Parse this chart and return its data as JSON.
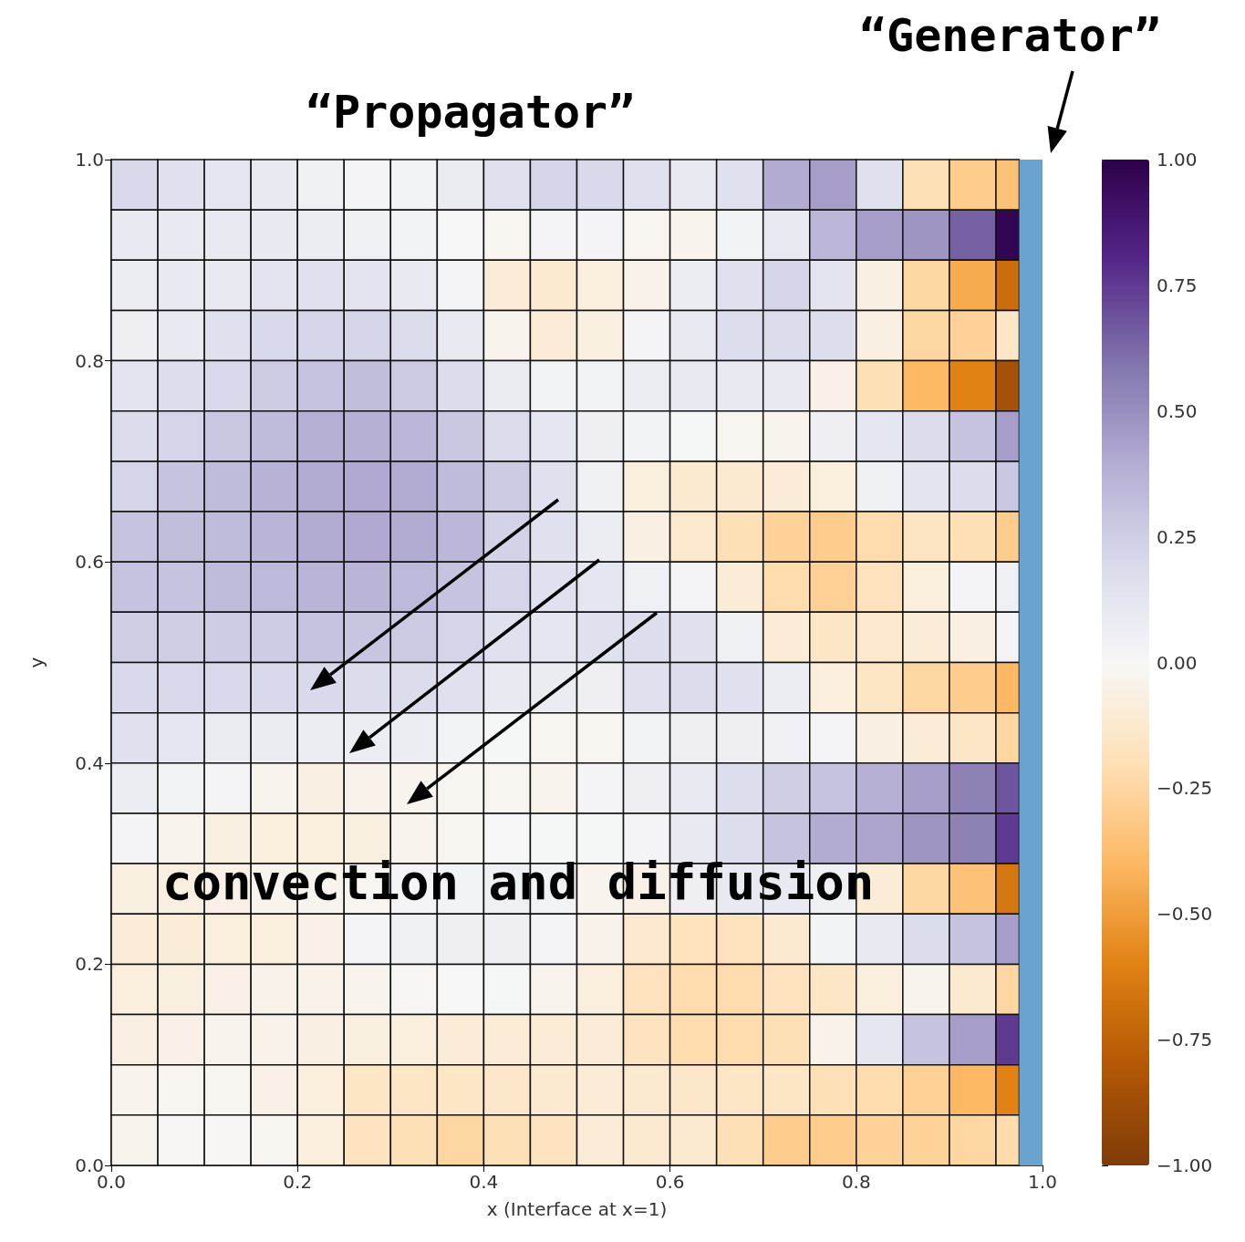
{
  "chart_data": {
    "type": "heatmap",
    "annotations": [
      "“Propagator”",
      "convection and diffusion"
    ],
    "xlabel": "x (Interface at x=1)",
    "ylabel": "y",
    "x": [
      0.025,
      0.075,
      0.125,
      0.175,
      0.225,
      0.275,
      0.325,
      0.375,
      0.425,
      0.475,
      0.525,
      0.575,
      0.625,
      0.675,
      0.725,
      0.775,
      0.825,
      0.875,
      0.925,
      0.9625
    ],
    "xlim": [
      0,
      1
    ],
    "ylim": [
      0,
      1
    ],
    "xticks": [
      {
        "value": 0,
        "label": "0.0"
      },
      {
        "value": 0.2,
        "label": "0.2"
      },
      {
        "value": 0.4,
        "label": "0.4"
      },
      {
        "value": 0.6,
        "label": "0.6"
      },
      {
        "value": 0.8,
        "label": "0.8"
      },
      {
        "value": 1,
        "label": "1.0"
      }
    ],
    "yticks": [
      {
        "value": 0,
        "label": "0.0"
      },
      {
        "value": 0.2,
        "label": "0.2"
      },
      {
        "value": 0.4,
        "label": "0.4"
      },
      {
        "value": 0.6,
        "label": "0.6"
      },
      {
        "value": 0.8,
        "label": "0.8"
      },
      {
        "value": 1,
        "label": "1.0"
      }
    ],
    "clim": [
      -1,
      1
    ],
    "cticks": [
      {
        "value": 1,
        "label": "1.00"
      },
      {
        "value": 0.75,
        "label": "0.75"
      },
      {
        "value": 0.5,
        "label": "0.50"
      },
      {
        "value": 0.25,
        "label": "0.25"
      },
      {
        "value": 0,
        "label": "0.00"
      },
      {
        "value": -0.25,
        "label": "−0.25"
      },
      {
        "value": -0.5,
        "label": "−0.50"
      },
      {
        "value": -0.75,
        "label": "−0.75"
      },
      {
        "value": -1,
        "label": "−1.00"
      }
    ],
    "bands": [
      {
        "axis": "x",
        "from": 0.975,
        "to": 1,
        "label": "“Generator”",
        "color": "#6aa3d0"
      }
    ],
    "grid": false,
    "cells": [
      [
        0.2,
        0.15,
        0.12,
        0.1,
        0.05,
        0.02,
        0.03,
        0.08,
        0.15,
        0.22,
        0.2,
        0.15,
        0.1,
        0.15,
        0.4,
        0.45,
        0.15,
        -0.2,
        -0.3,
        -0.35
      ],
      [
        0.1,
        0.1,
        0.1,
        0.1,
        0.07,
        0.05,
        0.03,
        0,
        -0.02,
        0.02,
        0.02,
        -0.02,
        -0.03,
        0.03,
        0.1,
        0.35,
        0.45,
        0.48,
        0.65,
        0.97
      ],
      [
        0.07,
        0.1,
        0.1,
        0.13,
        0.15,
        0.13,
        0.1,
        0.02,
        -0.1,
        -0.12,
        -0.08,
        -0.04,
        0.07,
        0.15,
        0.22,
        0.13,
        -0.06,
        -0.25,
        -0.45,
        -0.7
      ],
      [
        0.06,
        0.1,
        0.15,
        0.2,
        0.22,
        0.22,
        0.18,
        0.1,
        -0.03,
        -0.1,
        -0.07,
        0.02,
        0.1,
        0.17,
        0.18,
        0.17,
        -0.06,
        -0.25,
        -0.27,
        -0.15
      ],
      [
        0.13,
        0.17,
        0.2,
        0.26,
        0.3,
        0.32,
        0.27,
        0.18,
        0.08,
        0.03,
        0.03,
        0.07,
        0.1,
        0.1,
        0.1,
        -0.05,
        -0.2,
        -0.4,
        -0.6,
        -0.85
      ],
      [
        0.18,
        0.22,
        0.28,
        0.33,
        0.38,
        0.38,
        0.35,
        0.28,
        0.18,
        0.12,
        0.06,
        0.03,
        0.01,
        -0.02,
        -0.03,
        0.06,
        0.12,
        0.18,
        0.3,
        0.45
      ],
      [
        0.22,
        0.3,
        0.33,
        0.37,
        0.4,
        0.41,
        0.4,
        0.33,
        0.27,
        0.15,
        0.05,
        -0.08,
        -0.12,
        -0.12,
        -0.1,
        -0.08,
        0.05,
        0.13,
        0.18,
        0.28
      ],
      [
        0.3,
        0.32,
        0.33,
        0.36,
        0.4,
        0.41,
        0.4,
        0.35,
        0.23,
        0.15,
        0.07,
        -0.06,
        -0.13,
        -0.2,
        -0.27,
        -0.3,
        -0.22,
        -0.16,
        -0.2,
        -0.3
      ],
      [
        0.3,
        0.3,
        0.33,
        0.34,
        0.36,
        0.36,
        0.34,
        0.3,
        0.22,
        0.15,
        0.12,
        0.05,
        0.02,
        -0.1,
        -0.22,
        -0.28,
        -0.18,
        -0.08,
        0.02,
        0.05
      ],
      [
        0.25,
        0.25,
        0.26,
        0.26,
        0.3,
        0.29,
        0.27,
        0.22,
        0.15,
        0.12,
        0.15,
        0.17,
        0.15,
        0.05,
        -0.1,
        -0.15,
        -0.13,
        -0.1,
        -0.06,
        0.02
      ],
      [
        0.2,
        0.2,
        0.2,
        0.2,
        0.2,
        0.18,
        0.18,
        0.15,
        0.1,
        0.08,
        0.06,
        0.15,
        0.18,
        0.15,
        0.07,
        -0.08,
        -0.15,
        -0.25,
        -0.3,
        -0.4
      ],
      [
        0.15,
        0.12,
        0.08,
        0.08,
        0.07,
        0.07,
        0.07,
        0.03,
        0.01,
        -0.02,
        -0.02,
        0.03,
        0.06,
        0.06,
        0.04,
        0.02,
        -0.06,
        -0.1,
        -0.15,
        -0.25
      ],
      [
        0.07,
        0.03,
        0.02,
        -0.03,
        -0.06,
        -0.04,
        -0.03,
        -0.02,
        -0.02,
        -0.03,
        0.02,
        0.06,
        0.1,
        0.17,
        0.25,
        0.3,
        0.38,
        0.45,
        0.55,
        0.68
      ],
      [
        0.02,
        -0.03,
        -0.07,
        -0.08,
        -0.08,
        -0.07,
        -0.03,
        -0.02,
        0,
        0.01,
        0.01,
        0.02,
        0.1,
        0.17,
        0.3,
        0.4,
        0.42,
        0.48,
        0.55,
        0.75
      ],
      [
        -0.07,
        -0.07,
        -0.05,
        -0.03,
        -0.03,
        -0.02,
        0.02,
        0.03,
        0.05,
        0.03,
        -0.03,
        -0.05,
        0.06,
        0.1,
        0.1,
        0.05,
        -0.1,
        -0.25,
        -0.35,
        -0.65
      ],
      [
        -0.1,
        -0.1,
        -0.08,
        -0.08,
        -0.05,
        0.02,
        0.05,
        0.06,
        0.06,
        0.02,
        -0.04,
        -0.13,
        -0.18,
        -0.18,
        -0.12,
        0.03,
        0.1,
        0.18,
        0.3,
        0.45
      ],
      [
        -0.08,
        -0.07,
        -0.05,
        -0.04,
        -0.04,
        -0.03,
        -0.01,
        0,
        0.01,
        -0.03,
        -0.08,
        -0.18,
        -0.22,
        -0.22,
        -0.18,
        -0.15,
        -0.08,
        -0.03,
        -0.12,
        -0.25
      ],
      [
        -0.06,
        -0.05,
        -0.03,
        -0.04,
        -0.06,
        -0.07,
        -0.08,
        -0.1,
        -0.1,
        -0.1,
        -0.1,
        -0.17,
        -0.22,
        -0.22,
        -0.2,
        -0.04,
        0.12,
        0.3,
        0.45,
        0.75
      ],
      [
        -0.03,
        -0.02,
        -0.02,
        -0.05,
        -0.08,
        -0.15,
        -0.15,
        -0.15,
        -0.14,
        -0.12,
        -0.1,
        -0.12,
        -0.14,
        -0.15,
        -0.15,
        -0.2,
        -0.22,
        -0.28,
        -0.4,
        -0.6
      ],
      [
        -0.03,
        -0.01,
        -0.01,
        -0.02,
        -0.08,
        -0.17,
        -0.2,
        -0.25,
        -0.2,
        -0.17,
        -0.1,
        -0.12,
        -0.12,
        -0.2,
        -0.3,
        -0.3,
        -0.27,
        -0.27,
        -0.25,
        -0.22
      ]
    ]
  }
}
